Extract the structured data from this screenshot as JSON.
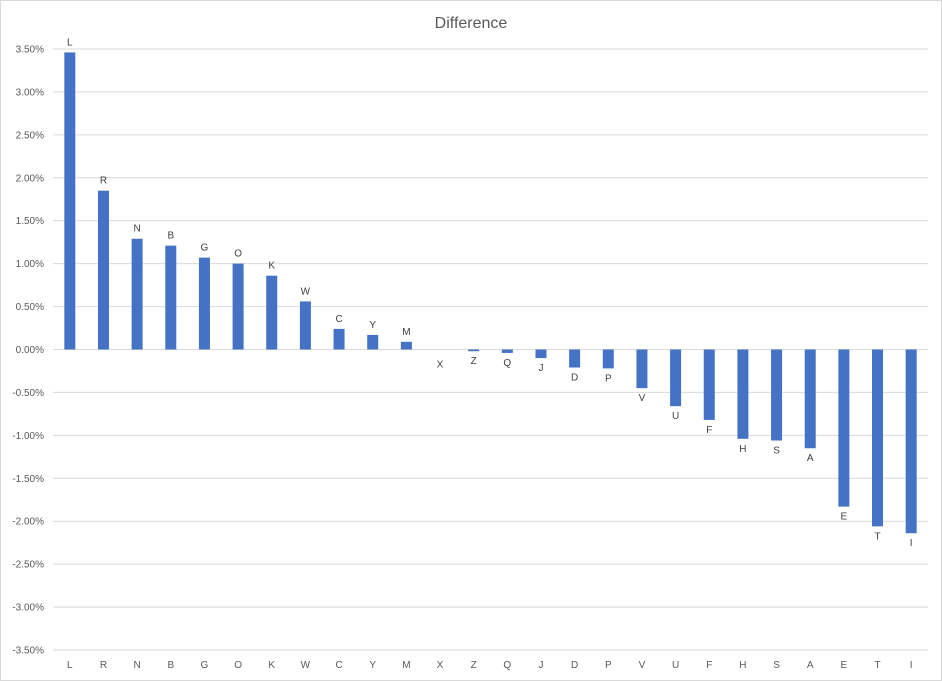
{
  "chart_data": {
    "type": "bar",
    "title": "Difference",
    "xlabel": "",
    "ylabel": "",
    "ylim": [
      -0.035,
      0.035
    ],
    "grid": true,
    "legend": "none",
    "bar_color": "#4472c4",
    "gridline_color": "#d9d9d9",
    "yticks": [
      "3.50%",
      "3.00%",
      "2.50%",
      "2.00%",
      "1.50%",
      "1.00%",
      "0.50%",
      "0.00%",
      "-0.50%",
      "-1.00%",
      "-1.50%",
      "-2.00%",
      "-2.50%",
      "-3.00%",
      "-3.50%"
    ],
    "ytick_values": [
      0.035,
      0.03,
      0.025,
      0.02,
      0.015,
      0.01,
      0.005,
      0,
      -0.005,
      -0.01,
      -0.015,
      -0.02,
      -0.025,
      -0.03,
      -0.035
    ],
    "categories": [
      "L",
      "R",
      "N",
      "B",
      "G",
      "O",
      "K",
      "W",
      "C",
      "Y",
      "M",
      "X",
      "Z",
      "Q",
      "J",
      "D",
      "P",
      "V",
      "U",
      "F",
      "H",
      "S",
      "A",
      "E",
      "T",
      "I"
    ],
    "values": [
      0.0346,
      0.0185,
      0.0129,
      0.0121,
      0.0107,
      0.01,
      0.0086,
      0.0056,
      0.0024,
      0.0017,
      0.0009,
      0.0,
      -0.0002,
      -0.0004,
      -0.001,
      -0.0021,
      -0.0022,
      -0.0045,
      -0.0066,
      -0.0082,
      -0.0104,
      -0.0106,
      -0.0115,
      -0.0183,
      -0.0206,
      -0.0214
    ]
  }
}
